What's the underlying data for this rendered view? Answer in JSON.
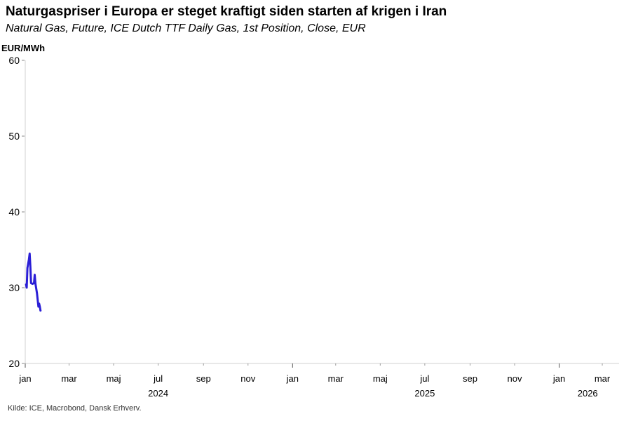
{
  "chart_data": {
    "type": "line",
    "title": "Naturgaspriser i Europa er steget kraftigt siden starten af krigen i Iran",
    "subtitle": "Natural Gas, Future, ICE Dutch TTF Daily Gas, 1st Position, Close, EUR",
    "ylabel": "EUR/MWh",
    "xlabel": "",
    "ylim": [
      20,
      60
    ],
    "yticks": [
      20,
      30,
      40,
      50,
      60
    ],
    "x_unit": "days since 2024-01-01",
    "xlim": [
      0,
      813
    ],
    "xticks": [
      {
        "day": 0,
        "label": "jan"
      },
      {
        "day": 60,
        "label": "mar"
      },
      {
        "day": 121,
        "label": "maj"
      },
      {
        "day": 182,
        "label": "jul"
      },
      {
        "day": 244,
        "label": "sep"
      },
      {
        "day": 305,
        "label": "nov"
      },
      {
        "day": 366,
        "label": "jan"
      },
      {
        "day": 425,
        "label": "mar"
      },
      {
        "day": 486,
        "label": "maj"
      },
      {
        "day": 547,
        "label": "jul"
      },
      {
        "day": 609,
        "label": "sep"
      },
      {
        "day": 670,
        "label": "nov"
      },
      {
        "day": 731,
        "label": "jan"
      },
      {
        "day": 790,
        "label": "mar"
      }
    ],
    "year_labels": [
      {
        "day": 182,
        "label": "2024"
      },
      {
        "day": 547,
        "label": "2025"
      },
      {
        "day": 770,
        "label": "2026"
      }
    ],
    "grid": false,
    "series": [
      {
        "name": "Natural Gas, Future, ICE Dutch TTF",
        "color": "#2b1fd6",
        "x": [
          1,
          2,
          3,
          5,
          6,
          7,
          8,
          10,
          12,
          13,
          14,
          16,
          18,
          19,
          20,
          21
        ],
        "y": [
          30.5,
          30.0,
          32.6,
          33.7,
          34.5,
          32.8,
          30.6,
          30.5,
          30.6,
          31.7,
          30.5,
          29.3,
          27.5,
          27.9,
          27.5,
          26.9
        ]
      }
    ]
  },
  "source": "Kilde: ICE, Macrobond, Dansk Erhverv."
}
